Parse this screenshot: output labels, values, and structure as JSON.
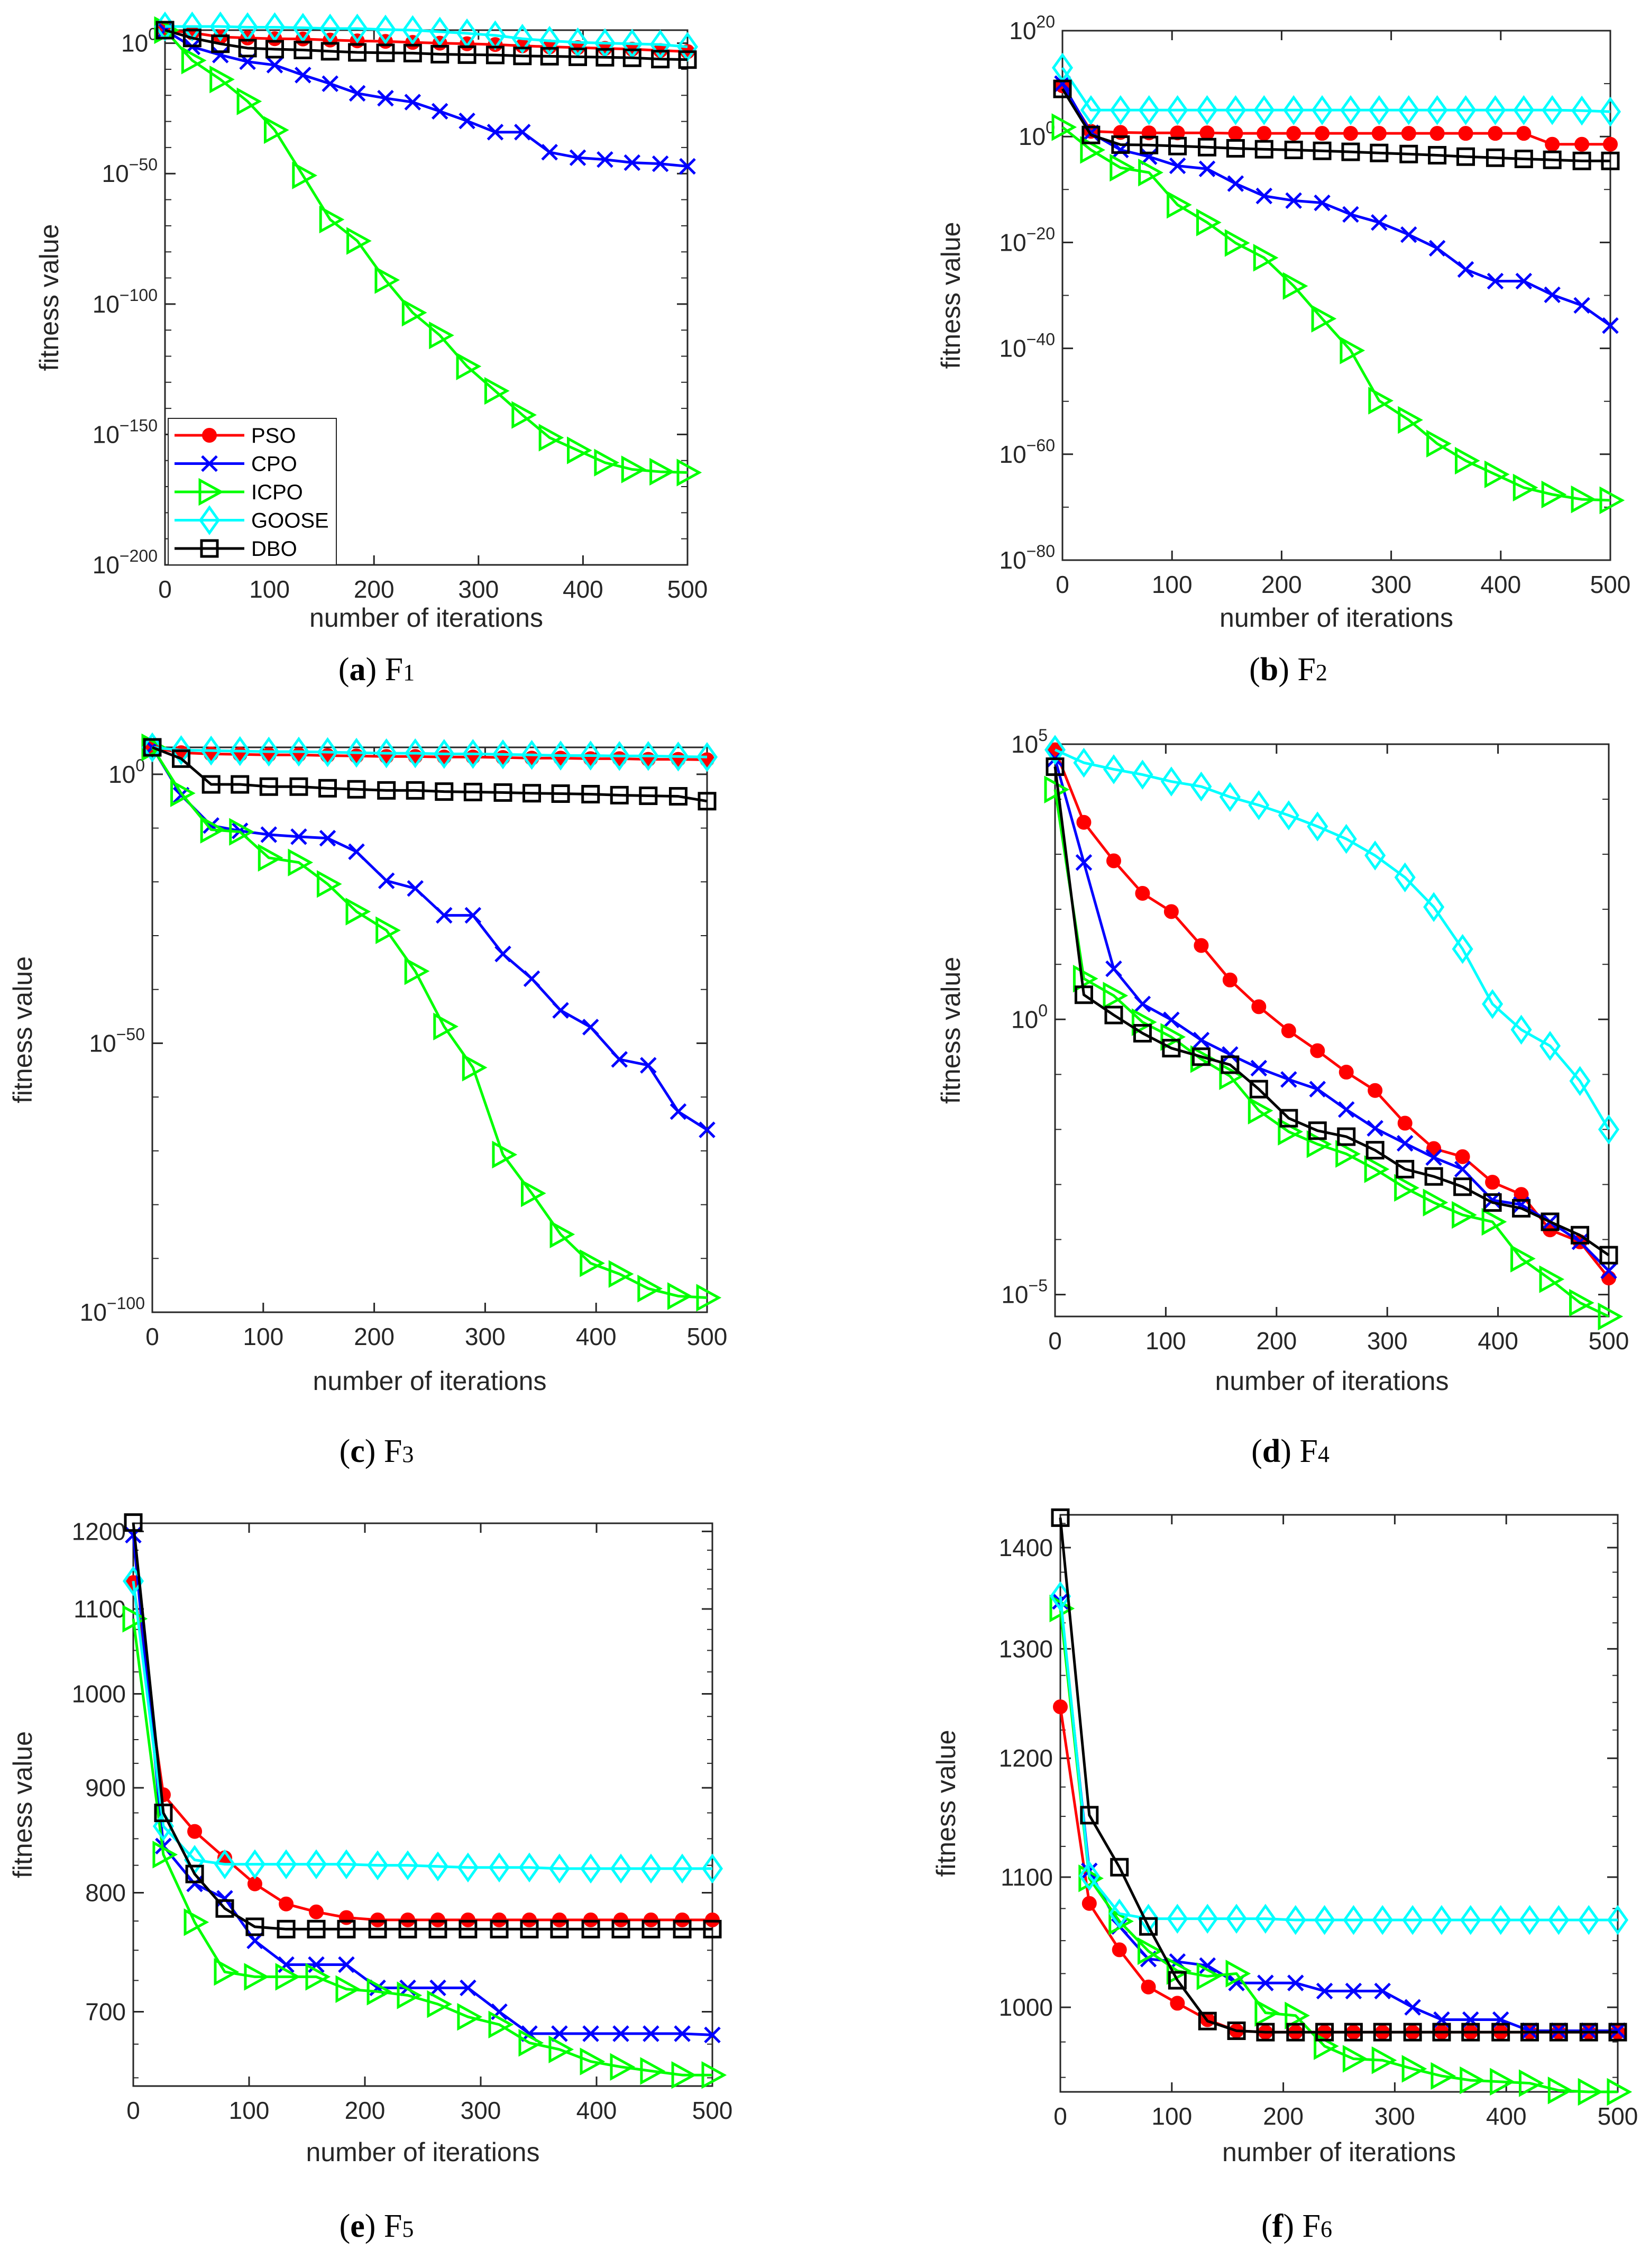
{
  "legend_order": [
    "PSO",
    "CPO",
    "ICPO",
    "GOOSE",
    "DBO"
  ],
  "styles": {
    "PSO": {
      "color": "#ff0000",
      "marker": "filled-circle"
    },
    "CPO": {
      "color": "#0000ff",
      "marker": "x"
    },
    "ICPO": {
      "color": "#00ff00",
      "marker": "right-triangle"
    },
    "GOOSE": {
      "color": "#00ffff",
      "marker": "diamond"
    },
    "DBO": {
      "color": "#000000",
      "marker": "square"
    }
  },
  "chart_data": [
    {
      "type": "line",
      "caption": {
        "label": "a",
        "text": "F",
        "sub": "1"
      },
      "xlabel": "number of iterations",
      "ylabel": "fitness value",
      "xlim": [
        0,
        500
      ],
      "xticks": [
        0,
        100,
        200,
        300,
        400,
        500
      ],
      "yscale": "log",
      "ylim": [
        1e-200,
        100000.0
      ],
      "yticks": [
        1e-200,
        1e-150,
        1e-100,
        1e-50,
        1
      ],
      "legend": {
        "location": "bottom-left",
        "entries": [
          "PSO",
          "CPO",
          "ICPO",
          "GOOSE",
          "DBO"
        ]
      },
      "x": [
        0,
        26,
        53,
        79,
        105,
        132,
        158,
        184,
        211,
        237,
        263,
        289,
        316,
        342,
        368,
        395,
        421,
        447,
        474,
        500
      ],
      "series": [
        {
          "name": "PSO",
          "values": [
            100000.0,
            10000.0,
            250.0,
            100.0,
            50,
            40,
            16,
            8,
            5,
            2,
            1,
            0.6,
            0.3,
            0.1,
            0.04,
            0.02,
            0.01,
            0.005,
            0.0016,
            0.0006
          ]
        },
        {
          "name": "CPO",
          "values": [
            100000.0,
            0.04,
            3e-05,
            8e-08,
            4e-09,
            6e-13,
            3e-16,
            6e-20,
            8e-22,
            2.5e-23,
            8e-27,
            1.6e-30,
            8e-35,
            8e-35,
            1.6e-42,
            1.3e-44,
            2.5e-45,
            1.6e-46,
            6e-47,
            6e-48
          ]
        },
        {
          "name": "ICPO",
          "values": [
            100000.0,
            2.5e-07,
            1.3e-14,
            5e-23,
            5e-34,
            2e-51,
            2.5e-68,
            1.6e-76,
            1.6e-91,
            5e-104,
            1e-112,
            1.3e-124,
            5e-134,
            3e-143,
            6e-152,
            8e-157,
            1.6e-161,
            4e-164,
            5e-165,
            2.5e-165
          ]
        },
        {
          "name": "GOOSE",
          "values": [
            2500000.0,
            2500000.0,
            2500000.0,
            1300000.0,
            1300000.0,
            800000.0,
            400000.0,
            400000.0,
            160000.0,
            100000.0,
            25000.0,
            6000.0,
            1000.0,
            50,
            8,
            2,
            1,
            0.6,
            0.3,
            0.04
          ]
        },
        {
          "name": "DBO",
          "values": [
            100000.0,
            100.0,
            0.6,
            0.013,
            0.005,
            0.0025,
            0.0008,
            0.0003,
            0.0002,
            0.00016,
            6e-05,
            4e-05,
            3e-05,
            1.3e-05,
            1e-05,
            6e-06,
            4e-06,
            2.5e-06,
            8e-07,
            5e-07
          ]
        }
      ]
    },
    {
      "type": "line",
      "caption": {
        "label": "b",
        "text": "F",
        "sub": "2"
      },
      "xlabel": "number of iterations",
      "ylabel": "fitness value",
      "xlim": [
        0,
        500
      ],
      "xticks": [
        0,
        100,
        200,
        300,
        400,
        500
      ],
      "yscale": "log",
      "ylim": [
        1e-80,
        1e+20
      ],
      "yticks": [
        1e-80,
        1e-60,
        1e-40,
        1e-20,
        1,
        1e+20
      ],
      "x": [
        0,
        26,
        53,
        79,
        105,
        132,
        158,
        184,
        211,
        237,
        263,
        289,
        316,
        342,
        368,
        395,
        421,
        447,
        474,
        500
      ],
      "series": [
        {
          "name": "PSO",
          "values": [
            4000000000.0,
            10,
            6,
            5,
            5,
            5,
            4,
            4,
            4,
            4,
            4,
            4,
            4,
            4,
            4,
            4,
            4,
            0.035,
            0.035,
            0.035
          ]
        },
        {
          "name": "CPO",
          "values": [
            10000000000.0,
            5,
            0.003,
            0.00016,
            3e-06,
            8e-07,
            1.3e-09,
            6e-12,
            8e-13,
            3e-13,
            2e-15,
            6e-17,
            3e-19,
            8e-22,
            8e-26,
            5e-28,
            5e-28,
            1.3e-30,
            1.3e-32,
            2e-36
          ]
        },
        {
          "name": "ICPO",
          "values": [
            60,
            0.003,
            1.3e-06,
            1.6e-07,
            1.3e-13,
            6e-17,
            8e-21,
            1.3e-23,
            6e-29,
            4e-35,
            4e-41,
            1.3e-50,
            3e-54,
            1e-58,
            6e-62,
            1.6e-64,
            5e-67,
            2.5e-68,
            3e-69,
            2e-69
          ]
        },
        {
          "name": "GOOSE",
          "values": [
            10000000000000.0,
            100000.0,
            100000.0,
            100000.0,
            100000.0,
            100000.0,
            100000.0,
            100000.0,
            100000.0,
            100000.0,
            100000.0,
            100000.0,
            100000.0,
            100000.0,
            100000.0,
            100000.0,
            100000.0,
            100000.0,
            80000.0,
            50000.0
          ]
        },
        {
          "name": "DBO",
          "values": [
            1000000000.0,
            2,
            0.03,
            0.025,
            0.016,
            0.01,
            0.006,
            0.004,
            0.003,
            0.002,
            0.0013,
            0.0008,
            0.0005,
            0.0003,
            0.00016,
            0.0001,
            6e-05,
            4e-05,
            2.5e-05,
            2.5e-05
          ]
        }
      ]
    },
    {
      "type": "line",
      "caption": {
        "label": "c",
        "text": "F",
        "sub": "3"
      },
      "xlabel": "number of iterations",
      "ylabel": "fitness value",
      "xlim": [
        0,
        500
      ],
      "xticks": [
        0,
        100,
        200,
        300,
        400,
        500
      ],
      "yscale": "log",
      "ylim": [
        1e-100,
        100000.0
      ],
      "yticks": [
        1e-100,
        1e-50,
        1
      ],
      "x": [
        0,
        26,
        53,
        79,
        105,
        132,
        158,
        184,
        211,
        237,
        263,
        289,
        316,
        342,
        368,
        395,
        421,
        447,
        474,
        500
      ],
      "series": [
        {
          "name": "PSO",
          "values": [
            100000.0,
            10000.0,
            6000.0,
            5000.0,
            4000.0,
            4000.0,
            3000.0,
            2500.0,
            2000.0,
            2000.0,
            1600.0,
            1600.0,
            1300.0,
            1000.0,
            1000.0,
            800.0,
            800.0,
            600.0,
            600.0,
            500.0
          ]
        },
        {
          "name": "CPO",
          "values": [
            100000.0,
            0.00013,
            3e-10,
            3e-11,
            6e-12,
            2.5e-12,
            1.3e-12,
            4e-15,
            1.6e-20,
            6e-22,
            6e-27,
            6e-27,
            4e-34,
            1e-38,
            1.3e-44,
            1e-47,
            1e-53,
            8e-55,
            2e-63,
            8e-67
          ]
        },
        {
          "name": "ICPO",
          "values": [
            100000.0,
            0.0003,
            5e-11,
            2e-11,
            3e-16,
            4e-17,
            4e-21,
            3e-26,
            1e-29,
            2.5e-37,
            1.3e-47,
            3e-55,
            2e-71,
            1.3e-78,
            3e-86,
            1.3e-91,
            1.3e-93,
            2.5e-96,
            1e-97,
            5e-98
          ]
        },
        {
          "name": "GOOSE",
          "values": [
            100000.0,
            30000.0,
            25000.0,
            20000.0,
            16000.0,
            16000.0,
            13000.0,
            10000.0,
            8000.0,
            8000.0,
            6000.0,
            6000.0,
            5000.0,
            4000.0,
            3000.0,
            3000.0,
            2500.0,
            2500.0,
            2000.0,
            1600.0
          ]
        },
        {
          "name": "DBO",
          "values": [
            100000.0,
            800.0,
            0.013,
            0.013,
            0.005,
            0.005,
            0.0025,
            0.0016,
            0.001,
            0.001,
            0.0006,
            0.0005,
            0.0004,
            0.0003,
            0.00025,
            0.0002,
            0.00013,
            0.0001,
            8e-05,
            1e-05
          ]
        }
      ]
    },
    {
      "type": "line",
      "caption": {
        "label": "d",
        "text": "F",
        "sub": "4"
      },
      "xlabel": "number of iterations",
      "ylabel": "fitness value",
      "xlim": [
        0,
        500
      ],
      "xticks": [
        0,
        100,
        200,
        300,
        400,
        500
      ],
      "yscale": "log",
      "ylim": [
        4e-06,
        100000.0
      ],
      "yticks": [
        1e-05,
        1,
        100000.0
      ],
      "x": [
        0,
        26,
        53,
        79,
        105,
        132,
        158,
        184,
        211,
        237,
        263,
        289,
        316,
        342,
        368,
        395,
        421,
        447,
        474,
        500
      ],
      "series": [
        {
          "name": "PSO",
          "values": [
            79000.0,
            3800.0,
            760,
            195,
            91,
            22,
            5.2,
            1.7,
            0.62,
            0.27,
            0.11,
            0.051,
            0.013,
            0.0045,
            0.0032,
            0.0011,
            0.00066,
            0.00015,
            9.1e-05,
            2e-05
          ]
        },
        {
          "name": "CPO",
          "values": [
            54000.0,
            710,
            8.3,
            1.9,
            0.98,
            0.42,
            0.23,
            0.13,
            0.081,
            0.054,
            0.023,
            0.0105,
            0.0056,
            0.0031,
            0.0019,
            0.00052,
            0.00043,
            0.00021,
            9.1e-05,
            2.7e-05
          ]
        },
        {
          "name": "ICPO",
          "values": [
            15000.0,
            5.5,
            2.7,
            0.89,
            0.48,
            0.19,
            0.093,
            0.022,
            0.0091,
            0.0054,
            0.0036,
            0.0019,
            0.00087,
            0.00047,
            0.00028,
            0.00021,
            4.5e-05,
            1.9e-05,
            7.1e-06,
            4e-06
          ]
        },
        {
          "name": "GOOSE",
          "values": [
            79000.0,
            46000.0,
            35000.0,
            28000.0,
            21000.0,
            17000.0,
            11000.0,
            7800.0,
            5100.0,
            3200.0,
            1900.0,
            950,
            380,
            110,
            19,
            1.9,
            0.65,
            0.33,
            0.076,
            0.01
          ]
        },
        {
          "name": "DBO",
          "values": [
            39000.0,
            2.8,
            1.2,
            0.56,
            0.3,
            0.21,
            0.15,
            0.054,
            0.016,
            0.0095,
            0.0074,
            0.0042,
            0.0019,
            0.0014,
            0.00091,
            0.00047,
            0.00037,
            0.00021,
            0.00012,
            5.2e-05
          ]
        }
      ]
    },
    {
      "type": "line",
      "caption": {
        "label": "e",
        "text": "F",
        "sub": "5"
      },
      "xlabel": "number of iterations",
      "ylabel": "fitness value",
      "xlim": [
        0,
        500
      ],
      "xticks": [
        0,
        100,
        200,
        300,
        400,
        500
      ],
      "yscale": "log",
      "ylim": [
        644,
        1211
      ],
      "yticks": [
        700,
        800,
        900,
        1000,
        1100,
        1200
      ],
      "x": [
        0,
        26,
        53,
        79,
        105,
        132,
        158,
        184,
        211,
        237,
        263,
        289,
        316,
        342,
        368,
        395,
        421,
        447,
        474,
        500
      ],
      "series": [
        {
          "name": "PSO",
          "values": [
            1133,
            893,
            857,
            832,
            808,
            790,
            783,
            778,
            776,
            776,
            776,
            776,
            776,
            776,
            776,
            776,
            776,
            776,
            776,
            776
          ]
        },
        {
          "name": "CPO",
          "values": [
            1195,
            843,
            808,
            795,
            758,
            738,
            738,
            738,
            719,
            719,
            719,
            719,
            700,
            683,
            683,
            683,
            683,
            683,
            683,
            682
          ]
        },
        {
          "name": "ICPO",
          "values": [
            1088,
            835,
            774,
            732,
            728,
            728,
            728,
            718,
            716,
            713,
            706,
            696,
            690,
            676,
            671,
            662,
            658,
            655,
            652,
            652
          ]
        },
        {
          "name": "GOOSE",
          "values": [
            1135,
            862,
            830,
            826,
            826,
            826,
            826,
            826,
            825,
            825,
            824,
            823,
            823,
            823,
            822,
            822,
            822,
            822,
            822,
            822
          ]
        },
        {
          "name": "DBO",
          "values": [
            1212,
            875,
            817,
            786,
            770,
            768,
            768,
            768,
            768,
            768,
            768,
            768,
            768,
            768,
            768,
            768,
            768,
            768,
            768,
            768
          ]
        }
      ]
    },
    {
      "type": "line",
      "caption": {
        "label": "f",
        "text": "F",
        "sub": "6"
      },
      "xlabel": "number of iterations",
      "ylabel": "fitness value",
      "xlim": [
        0,
        500
      ],
      "xticks": [
        0,
        100,
        200,
        300,
        400,
        500
      ],
      "yscale": "log",
      "ylim": [
        940,
        1434
      ],
      "yticks": [
        1000,
        1100,
        1200,
        1300,
        1400
      ],
      "x": [
        0,
        26,
        53,
        79,
        105,
        132,
        158,
        184,
        211,
        237,
        263,
        289,
        316,
        342,
        368,
        395,
        421,
        447,
        474,
        500
      ],
      "series": [
        {
          "name": "PSO",
          "values": [
            1246,
            1079,
            1043,
            1015,
            1003,
            991,
            983,
            982,
            982,
            982,
            982,
            982,
            982,
            982,
            982,
            982,
            982,
            982,
            982,
            982
          ]
        },
        {
          "name": "CPO",
          "values": [
            1346,
            1105,
            1061,
            1036,
            1034,
            1031,
            1018,
            1018,
            1018,
            1012,
            1012,
            1012,
            1000,
            991,
            991,
            991,
            983,
            983,
            983,
            983
          ]
        },
        {
          "name": "ICPO",
          "values": [
            1339,
            1099,
            1065,
            1042,
            1027,
            1023,
            1025,
            996,
            994,
            972,
            963,
            962,
            956,
            951,
            948,
            947,
            946,
            941,
            940,
            940
          ]
        },
        {
          "name": "GOOSE",
          "values": [
            1351,
            1101,
            1071,
            1067,
            1067,
            1067,
            1067,
            1067,
            1066,
            1066,
            1066,
            1066,
            1066,
            1066,
            1066,
            1066,
            1066,
            1066,
            1066,
            1066
          ]
        },
        {
          "name": "DBO",
          "values": [
            1431,
            1151,
            1108,
            1061,
            1020,
            990,
            983,
            982,
            982,
            982,
            982,
            982,
            982,
            982,
            982,
            982,
            982,
            982,
            982,
            982
          ]
        }
      ]
    }
  ]
}
